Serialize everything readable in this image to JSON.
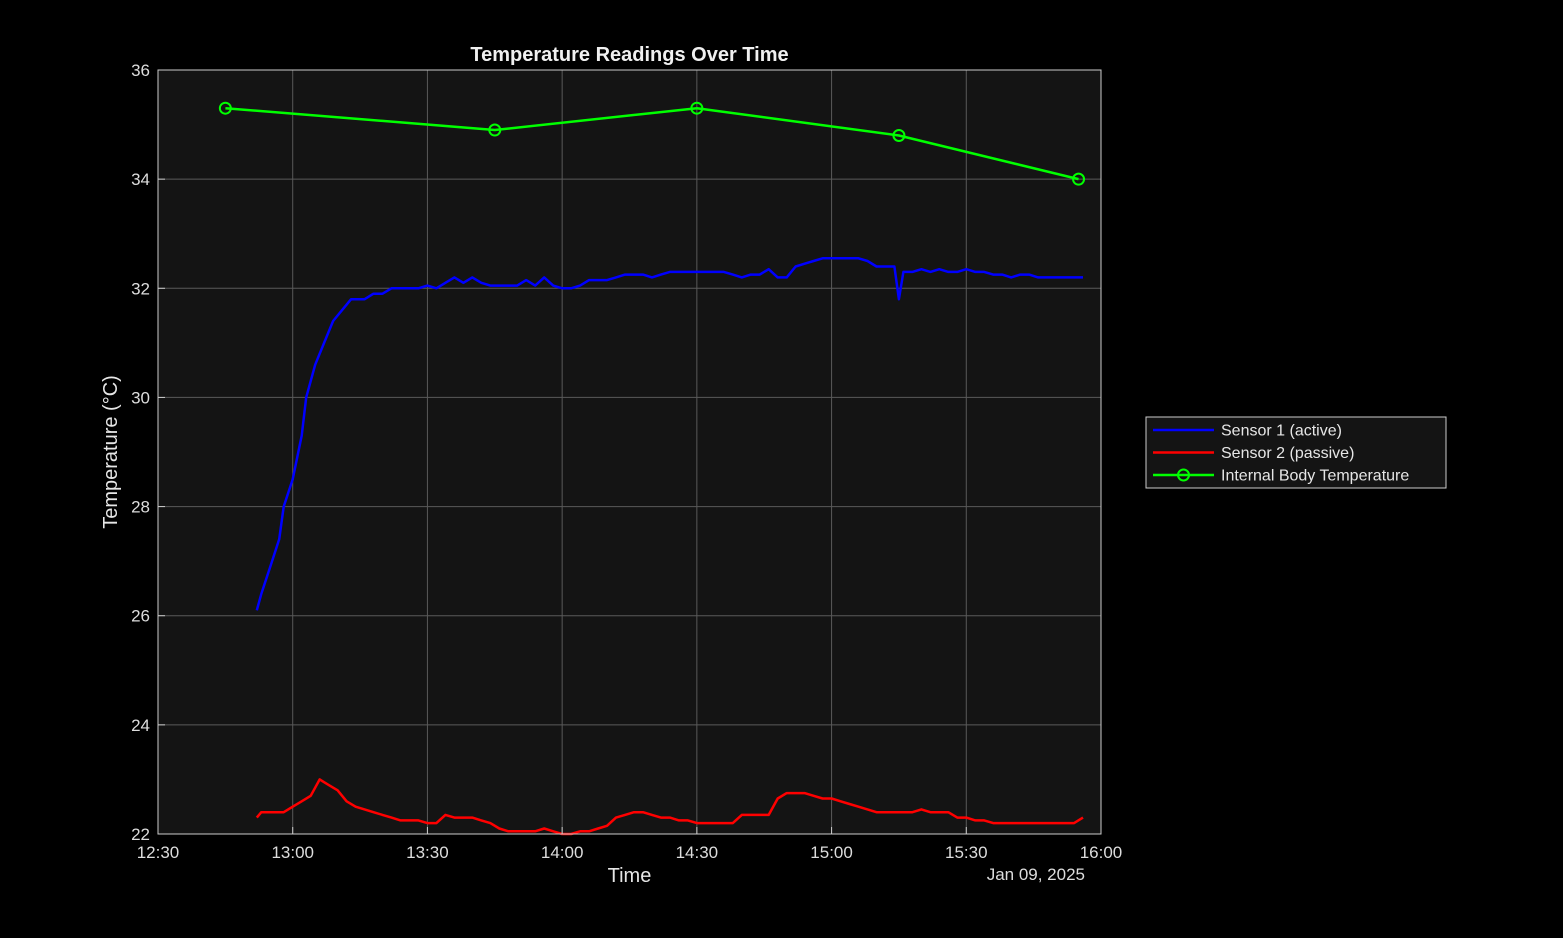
{
  "chart_data": {
    "type": "line",
    "title": "Temperature Readings Over Time",
    "xlabel": "Time",
    "ylabel": "Temperature (°C)",
    "date_label": "Jan 09, 2025",
    "xlim": [
      "12:30",
      "16:00"
    ],
    "ylim": [
      22,
      36
    ],
    "x_ticks": [
      "12:30",
      "13:00",
      "13:30",
      "14:00",
      "14:30",
      "15:00",
      "15:30",
      "16:00"
    ],
    "y_ticks": [
      22,
      24,
      26,
      28,
      30,
      32,
      34,
      36
    ],
    "grid": true,
    "legend_position": "outside-right",
    "colors": {
      "figure_background": "#000000",
      "axes_background": "#141414",
      "grid": "#5a5a5a",
      "axes_border": "#cccccc"
    },
    "series": [
      {
        "name": "Sensor 1 (active)",
        "color": "#0000ff",
        "marker": "none",
        "x": [
          "12:52",
          "12:53",
          "12:55",
          "12:57",
          "12:58",
          "13:00",
          "13:02",
          "13:03",
          "13:05",
          "13:07",
          "13:09",
          "13:11",
          "13:13",
          "13:15",
          "13:16",
          "13:18",
          "13:20",
          "13:22",
          "13:24",
          "13:26",
          "13:28",
          "13:30",
          "13:32",
          "13:34",
          "13:36",
          "13:38",
          "13:40",
          "13:42",
          "13:44",
          "13:46",
          "13:48",
          "13:50",
          "13:52",
          "13:54",
          "13:56",
          "13:58",
          "14:00",
          "14:02",
          "14:04",
          "14:06",
          "14:08",
          "14:10",
          "14:12",
          "14:14",
          "14:16",
          "14:18",
          "14:20",
          "14:22",
          "14:24",
          "14:26",
          "14:28",
          "14:30",
          "14:32",
          "14:34",
          "14:36",
          "14:38",
          "14:40",
          "14:42",
          "14:44",
          "14:46",
          "14:48",
          "14:50",
          "14:52",
          "14:54",
          "14:56",
          "14:58",
          "15:00",
          "15:02",
          "15:04",
          "15:06",
          "15:08",
          "15:10",
          "15:12",
          "15:14",
          "15:15",
          "15:16",
          "15:18",
          "15:20",
          "15:22",
          "15:24",
          "15:26",
          "15:28",
          "15:30",
          "15:32",
          "15:34",
          "15:36",
          "15:38",
          "15:40",
          "15:42",
          "15:44",
          "15:46",
          "15:48",
          "15:50",
          "15:52",
          "15:54",
          "15:56"
        ],
        "y": [
          26.1,
          26.4,
          26.9,
          27.4,
          28.0,
          28.5,
          29.3,
          30.0,
          30.6,
          31.0,
          31.4,
          31.6,
          31.8,
          31.8,
          31.8,
          31.9,
          31.9,
          32.0,
          32.0,
          32.0,
          32.0,
          32.05,
          32.0,
          32.1,
          32.2,
          32.1,
          32.2,
          32.1,
          32.05,
          32.05,
          32.05,
          32.05,
          32.15,
          32.05,
          32.2,
          32.05,
          32.0,
          32.0,
          32.05,
          32.15,
          32.15,
          32.15,
          32.2,
          32.25,
          32.25,
          32.25,
          32.2,
          32.25,
          32.3,
          32.3,
          32.3,
          32.3,
          32.3,
          32.3,
          32.3,
          32.25,
          32.2,
          32.25,
          32.25,
          32.35,
          32.2,
          32.2,
          32.4,
          32.45,
          32.5,
          32.55,
          32.55,
          32.55,
          32.55,
          32.55,
          32.5,
          32.4,
          32.4,
          32.4,
          31.8,
          32.3,
          32.3,
          32.35,
          32.3,
          32.35,
          32.3,
          32.3,
          32.35,
          32.3,
          32.3,
          32.25,
          32.25,
          32.2,
          32.25,
          32.25,
          32.2,
          32.2,
          32.2,
          32.2,
          32.2,
          32.2
        ]
      },
      {
        "name": "Sensor 2 (passive)",
        "color": "#ff0000",
        "marker": "none",
        "x": [
          "12:52",
          "12:53",
          "12:55",
          "12:58",
          "13:00",
          "13:02",
          "13:04",
          "13:06",
          "13:07",
          "13:08",
          "13:10",
          "13:12",
          "13:14",
          "13:16",
          "13:18",
          "13:20",
          "13:22",
          "13:24",
          "13:26",
          "13:28",
          "13:30",
          "13:32",
          "13:34",
          "13:36",
          "13:38",
          "13:40",
          "13:42",
          "13:44",
          "13:46",
          "13:48",
          "13:50",
          "13:52",
          "13:54",
          "13:56",
          "13:58",
          "14:00",
          "14:02",
          "14:04",
          "14:06",
          "14:08",
          "14:10",
          "14:12",
          "14:14",
          "14:16",
          "14:18",
          "14:20",
          "14:22",
          "14:24",
          "14:26",
          "14:28",
          "14:30",
          "14:32",
          "14:34",
          "14:36",
          "14:38",
          "14:40",
          "14:42",
          "14:44",
          "14:46",
          "14:48",
          "14:50",
          "14:52",
          "14:54",
          "14:56",
          "14:58",
          "15:00",
          "15:02",
          "15:04",
          "15:06",
          "15:08",
          "15:10",
          "15:12",
          "15:14",
          "15:16",
          "15:18",
          "15:20",
          "15:22",
          "15:24",
          "15:26",
          "15:28",
          "15:30",
          "15:32",
          "15:34",
          "15:36",
          "15:38",
          "15:40",
          "15:42",
          "15:44",
          "15:46",
          "15:48",
          "15:50",
          "15:52",
          "15:54",
          "15:56"
        ],
        "y": [
          22.3,
          22.4,
          22.4,
          22.4,
          22.5,
          22.6,
          22.7,
          23.0,
          22.95,
          22.9,
          22.8,
          22.6,
          22.5,
          22.45,
          22.4,
          22.35,
          22.3,
          22.25,
          22.25,
          22.25,
          22.2,
          22.2,
          22.35,
          22.3,
          22.3,
          22.3,
          22.25,
          22.2,
          22.1,
          22.05,
          22.05,
          22.05,
          22.05,
          22.1,
          22.05,
          22.0,
          22.0,
          22.05,
          22.05,
          22.1,
          22.15,
          22.3,
          22.35,
          22.4,
          22.4,
          22.35,
          22.3,
          22.3,
          22.25,
          22.25,
          22.2,
          22.2,
          22.2,
          22.2,
          22.2,
          22.35,
          22.35,
          22.35,
          22.35,
          22.65,
          22.75,
          22.75,
          22.75,
          22.7,
          22.65,
          22.65,
          22.6,
          22.55,
          22.5,
          22.45,
          22.4,
          22.4,
          22.4,
          22.4,
          22.4,
          22.45,
          22.4,
          22.4,
          22.4,
          22.3,
          22.3,
          22.25,
          22.25,
          22.2,
          22.2,
          22.2,
          22.2,
          22.2,
          22.2,
          22.2,
          22.2,
          22.2,
          22.2,
          22.3
        ]
      },
      {
        "name": "Internal Body Temperature",
        "color": "#00ff00",
        "marker": "circle",
        "x": [
          "12:45",
          "13:45",
          "14:30",
          "15:15",
          "15:55"
        ],
        "y": [
          35.3,
          34.9,
          35.3,
          34.8,
          34.0
        ]
      }
    ]
  }
}
